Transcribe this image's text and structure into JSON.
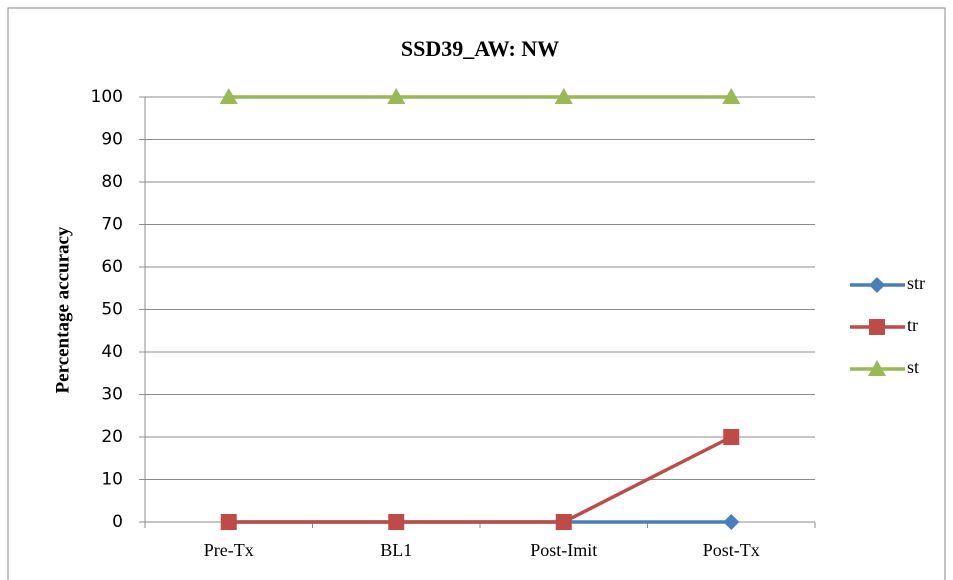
{
  "chart_data": {
    "type": "line",
    "title": "SSD39_AW: NW",
    "y_label": "Percentage accuracy",
    "categories": [
      "Pre-Tx",
      "BL1",
      "Post-Imit",
      "Post-Tx"
    ],
    "series": [
      {
        "name": "str",
        "color": "#4a7ebb",
        "marker": "diamond",
        "values": [
          0,
          0,
          0,
          0
        ]
      },
      {
        "name": "tr",
        "color": "#be4b48",
        "marker": "square",
        "values": [
          0,
          0,
          0,
          20
        ]
      },
      {
        "name": "st",
        "color": "#98b954",
        "marker": "triangle",
        "values": [
          100,
          100,
          100,
          100
        ]
      }
    ],
    "ylim": [
      0,
      100
    ],
    "yticks": [
      0,
      10,
      20,
      30,
      40,
      50,
      60,
      70,
      80,
      90,
      100
    ],
    "grid": true,
    "legend": "right"
  }
}
